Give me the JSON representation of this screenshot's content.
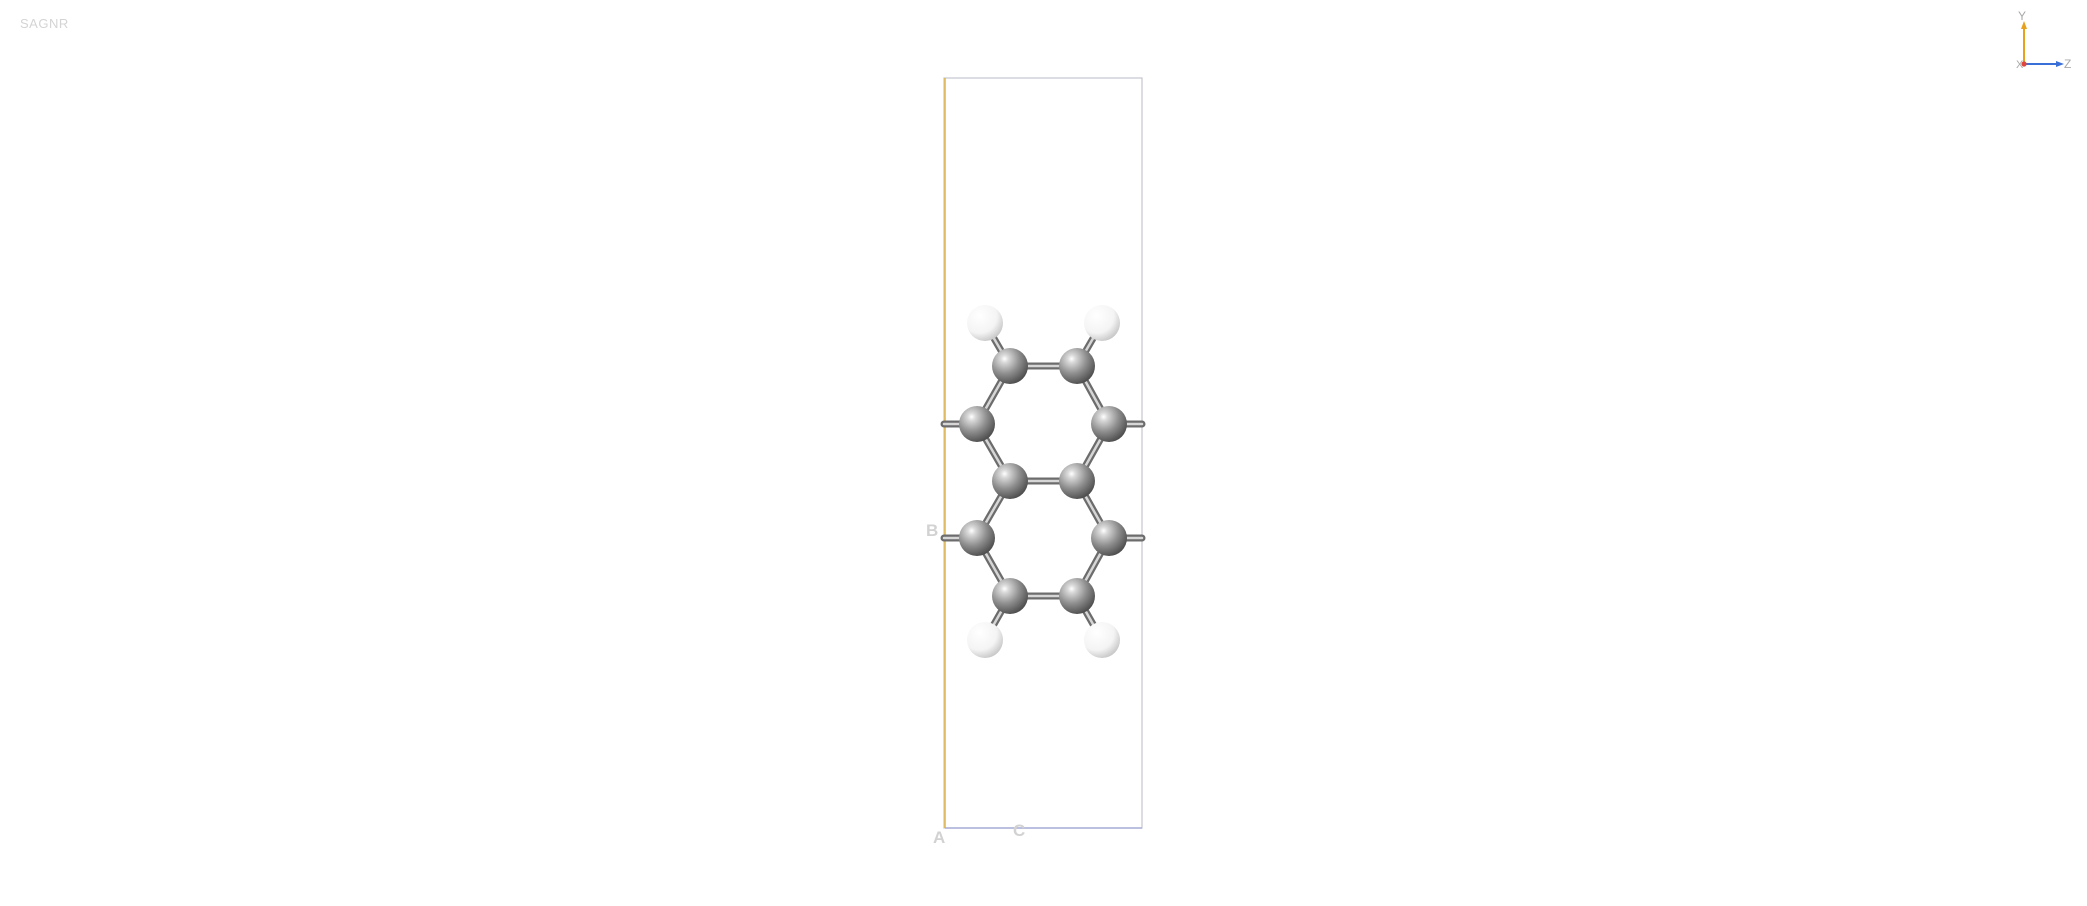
{
  "structure": {
    "name": "SAGNR"
  },
  "cell": {
    "vectors": [
      "A",
      "B",
      "C"
    ],
    "colors": {
      "edge": "#b3b3c6",
      "b_vector": "#e6b94a",
      "c_vector": "#aab0d8"
    }
  },
  "axes": {
    "labels": [
      "X",
      "Y",
      "Z"
    ],
    "colors": {
      "x": "#e0463c",
      "y": "#e6a11e",
      "z": "#3a6fd8"
    }
  },
  "elements": {
    "C": {
      "color": "#8a8a8a",
      "count": 10
    },
    "H": {
      "color": "#f2f2f2",
      "count": 4
    }
  }
}
